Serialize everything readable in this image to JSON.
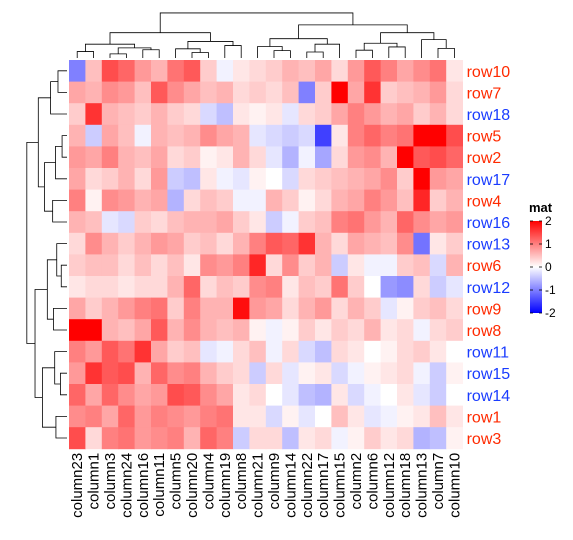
{
  "chart_data": {
    "type": "heatmap",
    "title": "",
    "xlabel": "",
    "ylabel": "",
    "columns": [
      "column23",
      "column1",
      "column3",
      "column24",
      "column16",
      "column11",
      "column5",
      "column20",
      "column4",
      "column19",
      "column8",
      "column21",
      "column9",
      "column14",
      "column22",
      "column17",
      "column15",
      "column2",
      "column6",
      "column12",
      "column18",
      "column13",
      "column7",
      "column10"
    ],
    "rows": [
      "row10",
      "row7",
      "row18",
      "row5",
      "row2",
      "row17",
      "row4",
      "row16",
      "row13",
      "row6",
      "row12",
      "row9",
      "row8",
      "row11",
      "row15",
      "row14",
      "row1",
      "row3"
    ],
    "row_label_colors": [
      "#ff2a00",
      "#ff2a00",
      "#1a3cff",
      "#ff2a00",
      "#ff2a00",
      "#1a3cff",
      "#ff2a00",
      "#1a3cff",
      "#1a3cff",
      "#ff2a00",
      "#1a3cff",
      "#ff2a00",
      "#ff2a00",
      "#1a3cff",
      "#1a3cff",
      "#1a3cff",
      "#ff2a00",
      "#ff2a00"
    ],
    "values": [
      [
        -1.0,
        0.5,
        1.4,
        1.2,
        0.8,
        0.6,
        1.1,
        1.3,
        0.4,
        -0.1,
        0.2,
        0.3,
        0.4,
        0.6,
        0.5,
        0.7,
        0.3,
        0.8,
        1.3,
        1.0,
        0.7,
        0.9,
        1.1,
        0.2
      ],
      [
        0.7,
        0.6,
        0.9,
        0.8,
        0.5,
        1.3,
        0.9,
        0.7,
        0.5,
        0.6,
        0.3,
        0.4,
        0.3,
        0.5,
        -1.0,
        0.4,
        2.0,
        0.7,
        1.6,
        0.4,
        0.5,
        0.6,
        0.8,
        0.3
      ],
      [
        0.4,
        1.6,
        0.6,
        0.5,
        0.4,
        0.6,
        0.4,
        0.3,
        -0.3,
        -0.5,
        0.2,
        0.1,
        0.2,
        -0.2,
        0.3,
        0.4,
        0.7,
        1.0,
        0.8,
        0.6,
        0.7,
        0.4,
        0.6,
        0.3
      ],
      [
        0.6,
        -0.4,
        0.7,
        0.5,
        -0.1,
        0.6,
        0.5,
        0.6,
        0.9,
        0.7,
        0.6,
        -0.2,
        -0.3,
        -0.4,
        -0.3,
        -1.5,
        0.2,
        1.0,
        1.2,
        1.0,
        1.1,
        2.2,
        2.3,
        1.4
      ],
      [
        0.8,
        0.7,
        1.0,
        0.6,
        0.5,
        0.7,
        0.3,
        0.4,
        0.1,
        0.2,
        0.6,
        0.3,
        -0.2,
        -0.6,
        -0.1,
        -0.7,
        0.3,
        0.8,
        0.9,
        0.6,
        2.1,
        1.3,
        1.4,
        1.2
      ],
      [
        0.7,
        0.3,
        0.4,
        0.6,
        0.3,
        0.8,
        -0.4,
        -0.5,
        0.2,
        -0.1,
        -0.2,
        0.1,
        0.0,
        -0.3,
        0.3,
        0.4,
        0.5,
        0.6,
        0.7,
        0.9,
        0.4,
        2.1,
        0.8,
        0.7
      ],
      [
        1.0,
        0.1,
        0.9,
        0.8,
        0.6,
        0.7,
        -0.6,
        0.3,
        0.5,
        0.4,
        -0.1,
        -0.1,
        0.6,
        0.4,
        0.1,
        0.3,
        0.6,
        0.7,
        1.0,
        0.8,
        0.5,
        1.7,
        0.4,
        0.6
      ],
      [
        0.6,
        0.5,
        -0.2,
        -0.3,
        0.4,
        0.3,
        0.5,
        0.6,
        0.6,
        0.7,
        0.4,
        0.2,
        -0.4,
        -0.1,
        0.4,
        0.5,
        1.0,
        1.1,
        0.8,
        0.6,
        1.2,
        0.9,
        0.7,
        0.8
      ],
      [
        0.3,
        0.9,
        0.6,
        0.4,
        0.6,
        0.8,
        0.7,
        0.4,
        0.5,
        0.3,
        0.6,
        1.0,
        1.3,
        1.2,
        1.6,
        0.6,
        0.3,
        0.7,
        0.6,
        0.5,
        0.9,
        -1.1,
        0.2,
        0.4
      ],
      [
        0.4,
        0.5,
        0.5,
        0.3,
        0.5,
        0.3,
        0.5,
        0.2,
        0.9,
        0.8,
        1.0,
        1.7,
        0.3,
        0.9,
        0.4,
        0.6,
        -0.4,
        0.2,
        -0.1,
        -0.1,
        0.4,
        0.5,
        -0.3,
        0.6
      ],
      [
        0.2,
        0.3,
        0.3,
        0.2,
        0.3,
        0.3,
        0.6,
        1.2,
        0.3,
        0.5,
        0.4,
        0.9,
        1.0,
        0.2,
        0.5,
        0.4,
        1.1,
        0.4,
        0.0,
        -0.8,
        -0.9,
        0.3,
        -0.4,
        -0.2
      ],
      [
        0.7,
        0.4,
        0.6,
        0.8,
        1.0,
        1.1,
        0.4,
        1.0,
        0.6,
        0.6,
        1.9,
        0.8,
        0.7,
        0.3,
        0.6,
        0.8,
        0.3,
        0.6,
        0.4,
        -0.2,
        0.1,
        0.4,
        0.5,
        0.3
      ],
      [
        2.0,
        2.1,
        0.6,
        0.5,
        0.7,
        1.3,
        0.6,
        0.9,
        0.6,
        0.5,
        0.6,
        0.1,
        -0.1,
        0.1,
        0.4,
        0.2,
        0.4,
        0.3,
        0.6,
        0.2,
        0.3,
        -0.1,
        0.3,
        0.4
      ],
      [
        1.0,
        0.8,
        1.3,
        1.1,
        1.6,
        0.7,
        0.4,
        0.5,
        -0.2,
        -0.1,
        0.3,
        0.5,
        -0.1,
        0.3,
        -0.3,
        -0.5,
        0.3,
        0.2,
        0.0,
        0.1,
        0.3,
        0.4,
        0.2,
        0.0
      ],
      [
        0.8,
        1.6,
        1.3,
        1.4,
        0.6,
        1.2,
        0.9,
        1.0,
        0.6,
        0.4,
        0.3,
        -0.4,
        0.3,
        -0.2,
        0.1,
        0.2,
        -0.3,
        -0.1,
        0.1,
        0.2,
        0.3,
        -0.1,
        -0.4,
        0.1
      ],
      [
        1.2,
        0.7,
        1.2,
        0.9,
        0.7,
        0.8,
        1.4,
        1.3,
        0.9,
        0.7,
        0.2,
        0.3,
        0.0,
        -0.2,
        -0.5,
        -0.6,
        0.2,
        -0.3,
        -0.1,
        0.0,
        0.2,
        -0.2,
        -0.4,
        0.0
      ],
      [
        0.9,
        1.0,
        0.7,
        1.2,
        0.8,
        1.0,
        0.9,
        0.8,
        1.0,
        1.1,
        0.2,
        0.2,
        -0.3,
        0.1,
        -0.2,
        0.0,
        0.5,
        0.2,
        -0.2,
        -0.1,
        0.1,
        0.2,
        0.5,
        0.2
      ],
      [
        1.4,
        0.3,
        1.0,
        1.1,
        0.8,
        0.9,
        1.0,
        0.6,
        1.2,
        1.0,
        -0.4,
        0.3,
        0.3,
        -0.5,
        0.2,
        0.3,
        -0.1,
        0.1,
        0.4,
        0.2,
        0.3,
        -0.6,
        -0.5,
        0.1
      ]
    ],
    "color_scale": {
      "low": "#0000ff",
      "mid": "#ffffff",
      "high": "#ff0000",
      "domain": [
        -2,
        0,
        2
      ]
    },
    "legend": {
      "title": "mat",
      "ticks": [
        2,
        1,
        0,
        -1,
        -2
      ],
      "tick_labels": [
        "2",
        "1",
        "0",
        "-1",
        "-2"
      ],
      "placement": "right"
    },
    "row_dendrogram": true,
    "column_dendrogram": true
  }
}
